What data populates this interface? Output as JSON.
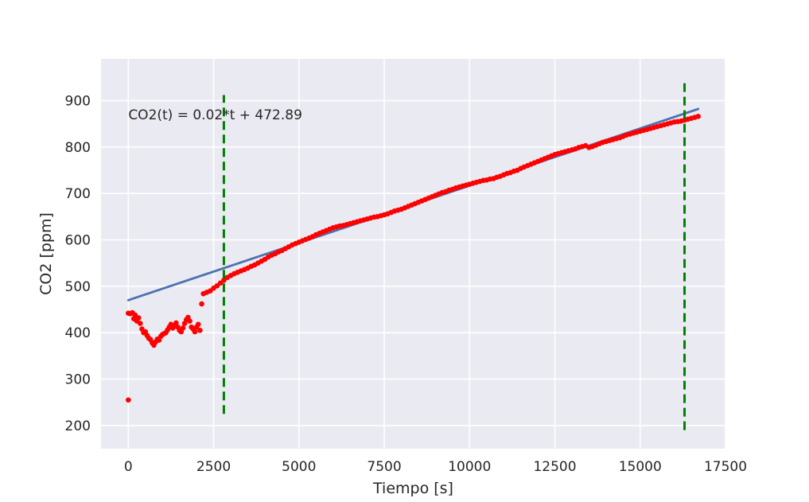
{
  "chart_data": {
    "type": "scatter",
    "xlabel": "Tiempo [s]",
    "ylabel": "CO2 [ppm]",
    "xlim": [
      -800,
      17500
    ],
    "ylim": [
      150,
      990
    ],
    "x_ticks": [
      0,
      2500,
      5000,
      7500,
      10000,
      12500,
      15000,
      17500
    ],
    "y_ticks": [
      200,
      300,
      400,
      500,
      600,
      700,
      800,
      900
    ],
    "grid": true,
    "annotation": "CO2(t) = 0.02*t + 472.89",
    "colors": {
      "background": "#eaeaf2",
      "grid": "#ffffff",
      "points": "#ff0000",
      "fit_line": "#4c72b0",
      "vlines": "#008000"
    },
    "series": [
      {
        "kind": "points",
        "color": "#ff0000",
        "points": [
          [
            0,
            255
          ],
          [
            0,
            442
          ],
          [
            60,
            441
          ],
          [
            120,
            443
          ],
          [
            160,
            430
          ],
          [
            200,
            438
          ],
          [
            250,
            425
          ],
          [
            300,
            432
          ],
          [
            350,
            420
          ],
          [
            400,
            408
          ],
          [
            450,
            400
          ],
          [
            500,
            402
          ],
          [
            550,
            394
          ],
          [
            600,
            388
          ],
          [
            650,
            385
          ],
          [
            700,
            378
          ],
          [
            750,
            373
          ],
          [
            800,
            380
          ],
          [
            850,
            386
          ],
          [
            900,
            384
          ],
          [
            950,
            392
          ],
          [
            1000,
            396
          ],
          [
            1050,
            398
          ],
          [
            1100,
            400
          ],
          [
            1150,
            406
          ],
          [
            1200,
            412
          ],
          [
            1250,
            418
          ],
          [
            1300,
            410
          ],
          [
            1350,
            415
          ],
          [
            1400,
            421
          ],
          [
            1450,
            412
          ],
          [
            1500,
            405
          ],
          [
            1550,
            402
          ],
          [
            1600,
            410
          ],
          [
            1650,
            420
          ],
          [
            1700,
            428
          ],
          [
            1750,
            433
          ],
          [
            1800,
            425
          ],
          [
            1850,
            412
          ],
          [
            1900,
            408
          ],
          [
            1950,
            402
          ],
          [
            2000,
            412
          ],
          [
            2050,
            418
          ],
          [
            2100,
            405
          ],
          [
            2150,
            462
          ],
          [
            2200,
            484
          ],
          [
            2300,
            487
          ],
          [
            2400,
            490
          ],
          [
            2500,
            496
          ],
          [
            2600,
            501
          ],
          [
            2700,
            507
          ],
          [
            2800,
            513
          ],
          [
            2900,
            519
          ],
          [
            3000,
            523
          ],
          [
            3100,
            527
          ],
          [
            3200,
            530
          ],
          [
            3300,
            533
          ],
          [
            3400,
            536
          ],
          [
            3500,
            539
          ],
          [
            3600,
            543
          ],
          [
            3700,
            546
          ],
          [
            3800,
            550
          ],
          [
            3900,
            554
          ],
          [
            4000,
            558
          ],
          [
            4100,
            563
          ],
          [
            4200,
            567
          ],
          [
            4300,
            570
          ],
          [
            4400,
            574
          ],
          [
            4500,
            577
          ],
          [
            4600,
            581
          ],
          [
            4700,
            585
          ],
          [
            4800,
            589
          ],
          [
            4900,
            592
          ],
          [
            5000,
            595
          ],
          [
            5100,
            598
          ],
          [
            5200,
            601
          ],
          [
            5300,
            604
          ],
          [
            5400,
            607
          ],
          [
            5500,
            611
          ],
          [
            5600,
            614
          ],
          [
            5700,
            617
          ],
          [
            5800,
            620
          ],
          [
            5900,
            623
          ],
          [
            6000,
            626
          ],
          [
            6100,
            628
          ],
          [
            6200,
            630
          ],
          [
            6300,
            631
          ],
          [
            6400,
            633
          ],
          [
            6500,
            635
          ],
          [
            6600,
            637
          ],
          [
            6700,
            639
          ],
          [
            6800,
            641
          ],
          [
            6900,
            643
          ],
          [
            7000,
            645
          ],
          [
            7100,
            647
          ],
          [
            7200,
            649
          ],
          [
            7300,
            650
          ],
          [
            7400,
            652
          ],
          [
            7500,
            654
          ],
          [
            7600,
            656
          ],
          [
            7700,
            659
          ],
          [
            7800,
            662
          ],
          [
            7900,
            664
          ],
          [
            8000,
            666
          ],
          [
            8100,
            669
          ],
          [
            8200,
            672
          ],
          [
            8300,
            675
          ],
          [
            8400,
            678
          ],
          [
            8500,
            681
          ],
          [
            8600,
            684
          ],
          [
            8700,
            687
          ],
          [
            8800,
            690
          ],
          [
            8900,
            693
          ],
          [
            9000,
            696
          ],
          [
            9100,
            699
          ],
          [
            9200,
            702
          ],
          [
            9300,
            704
          ],
          [
            9400,
            707
          ],
          [
            9500,
            709
          ],
          [
            9600,
            712
          ],
          [
            9700,
            714
          ],
          [
            9800,
            716
          ],
          [
            9900,
            718
          ],
          [
            10000,
            720
          ],
          [
            10100,
            722
          ],
          [
            10200,
            724
          ],
          [
            10300,
            726
          ],
          [
            10400,
            728
          ],
          [
            10500,
            729
          ],
          [
            10600,
            731
          ],
          [
            10700,
            732
          ],
          [
            10800,
            735
          ],
          [
            10900,
            737
          ],
          [
            11000,
            740
          ],
          [
            11100,
            743
          ],
          [
            11200,
            745
          ],
          [
            11300,
            748
          ],
          [
            11400,
            750
          ],
          [
            11500,
            754
          ],
          [
            11600,
            757
          ],
          [
            11700,
            760
          ],
          [
            11800,
            763
          ],
          [
            11900,
            766
          ],
          [
            12000,
            769
          ],
          [
            12100,
            772
          ],
          [
            12200,
            775
          ],
          [
            12300,
            778
          ],
          [
            12400,
            781
          ],
          [
            12500,
            784
          ],
          [
            12600,
            786
          ],
          [
            12700,
            788
          ],
          [
            12800,
            790
          ],
          [
            12900,
            792
          ],
          [
            13000,
            794
          ],
          [
            13100,
            796
          ],
          [
            13200,
            799
          ],
          [
            13300,
            801
          ],
          [
            13400,
            803
          ],
          [
            13500,
            799
          ],
          [
            13600,
            801
          ],
          [
            13700,
            804
          ],
          [
            13800,
            807
          ],
          [
            13900,
            810
          ],
          [
            14000,
            812
          ],
          [
            14100,
            814
          ],
          [
            14200,
            816
          ],
          [
            14300,
            818
          ],
          [
            14400,
            820
          ],
          [
            14500,
            823
          ],
          [
            14600,
            826
          ],
          [
            14700,
            828
          ],
          [
            14800,
            830
          ],
          [
            14900,
            832
          ],
          [
            15000,
            834
          ],
          [
            15100,
            836
          ],
          [
            15200,
            838
          ],
          [
            15300,
            840
          ],
          [
            15400,
            842
          ],
          [
            15500,
            844
          ],
          [
            15600,
            846
          ],
          [
            15700,
            848
          ],
          [
            15800,
            850
          ],
          [
            15900,
            852
          ],
          [
            16000,
            854
          ],
          [
            16100,
            855
          ],
          [
            16200,
            856
          ],
          [
            16300,
            858
          ],
          [
            16400,
            860
          ],
          [
            16500,
            862
          ],
          [
            16600,
            864
          ],
          [
            16700,
            866
          ]
        ]
      },
      {
        "kind": "line",
        "color": "#4c72b0",
        "x": [
          0,
          16700
        ],
        "y": [
          470,
          882
        ]
      }
    ],
    "vlines": [
      {
        "x": 2800,
        "ymin": 225,
        "ymax": 912,
        "style": "dashed",
        "color": "#008000"
      },
      {
        "x": 16300,
        "ymin": 190,
        "ymax": 945,
        "style": "dashed",
        "color": "#008000"
      }
    ]
  }
}
